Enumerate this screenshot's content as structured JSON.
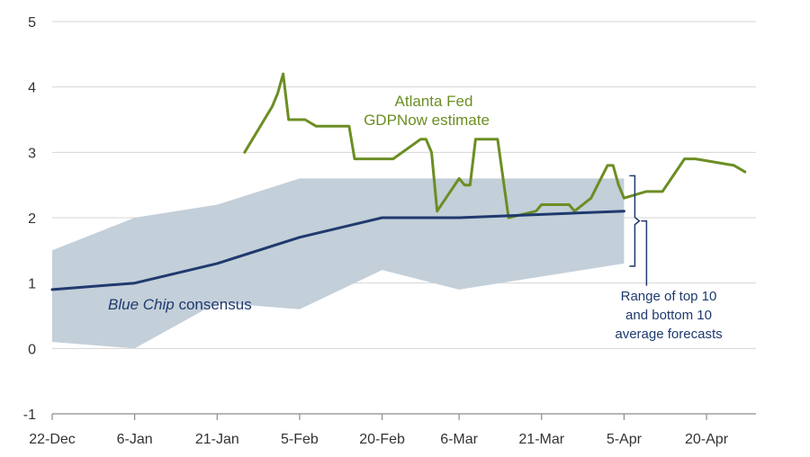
{
  "chart_data": {
    "type": "line",
    "x_axis": {
      "type": "date",
      "range": [
        "2018-12-22",
        "2019-04-29"
      ],
      "tick_labels": [
        "22-Dec",
        "6-Jan",
        "21-Jan",
        "5-Feb",
        "20-Feb",
        "6-Mar",
        "21-Mar",
        "5-Apr",
        "20-Apr"
      ],
      "tick_dates": [
        "2018-12-22",
        "2019-01-06",
        "2019-01-21",
        "2019-02-05",
        "2019-02-20",
        "2019-03-06",
        "2019-03-21",
        "2019-04-05",
        "2019-04-20"
      ]
    },
    "y_axis": {
      "range": [
        -1,
        5
      ],
      "tick_labels": [
        "-1",
        "0",
        "1",
        "2",
        "3",
        "4",
        "5"
      ],
      "tick_values": [
        -1,
        0,
        1,
        2,
        3,
        4,
        5
      ],
      "gridlines": true
    },
    "series": [
      {
        "name": "Atlanta Fed GDPNow estimate",
        "kind": "line",
        "color": "#6b8e23",
        "points": [
          [
            "2019-01-26",
            3.0
          ],
          [
            "2019-01-31",
            3.7
          ],
          [
            "2019-02-01",
            3.9
          ],
          [
            "2019-02-02",
            4.2
          ],
          [
            "2019-02-03",
            3.5
          ],
          [
            "2019-02-06",
            3.5
          ],
          [
            "2019-02-08",
            3.4
          ],
          [
            "2019-02-14",
            3.4
          ],
          [
            "2019-02-15",
            2.9
          ],
          [
            "2019-02-22",
            2.9
          ],
          [
            "2019-02-27",
            3.2
          ],
          [
            "2019-02-28",
            3.2
          ],
          [
            "2019-03-01",
            3.0
          ],
          [
            "2019-03-02",
            2.1
          ],
          [
            "2019-03-06",
            2.6
          ],
          [
            "2019-03-07",
            2.5
          ],
          [
            "2019-03-08",
            2.5
          ],
          [
            "2019-03-09",
            3.2
          ],
          [
            "2019-03-13",
            3.2
          ],
          [
            "2019-03-15",
            2.0
          ],
          [
            "2019-03-20",
            2.1
          ],
          [
            "2019-03-21",
            2.2
          ],
          [
            "2019-03-26",
            2.2
          ],
          [
            "2019-03-27",
            2.1
          ],
          [
            "2019-03-30",
            2.3
          ],
          [
            "2019-04-02",
            2.8
          ],
          [
            "2019-04-03",
            2.8
          ],
          [
            "2019-04-04",
            2.5
          ],
          [
            "2019-04-05",
            2.3
          ],
          [
            "2019-04-07",
            2.35
          ],
          [
            "2019-04-09",
            2.4
          ],
          [
            "2019-04-12",
            2.4
          ],
          [
            "2019-04-16",
            2.9
          ],
          [
            "2019-04-18",
            2.9
          ],
          [
            "2019-04-25",
            2.8
          ],
          [
            "2019-04-27",
            2.7
          ]
        ]
      },
      {
        "name": "Blue Chip consensus",
        "kind": "line",
        "color": "#1f3a6e",
        "points": [
          [
            "2018-12-22",
            0.9
          ],
          [
            "2019-01-06",
            1.0
          ],
          [
            "2019-01-21",
            1.3
          ],
          [
            "2019-02-05",
            1.7
          ],
          [
            "2019-02-20",
            2.0
          ],
          [
            "2019-03-06",
            2.0
          ],
          [
            "2019-03-21",
            2.05
          ],
          [
            "2019-04-05",
            2.1
          ]
        ]
      },
      {
        "name": "Range of top 10 and bottom 10 average forecasts",
        "kind": "band",
        "color": "#c3cfd9",
        "upper": [
          [
            "2018-12-22",
            1.5
          ],
          [
            "2019-01-06",
            2.0
          ],
          [
            "2019-01-21",
            2.2
          ],
          [
            "2019-02-05",
            2.6
          ],
          [
            "2019-02-20",
            2.6
          ],
          [
            "2019-03-06",
            2.6
          ],
          [
            "2019-03-21",
            2.6
          ],
          [
            "2019-04-05",
            2.6
          ]
        ],
        "lower": [
          [
            "2018-12-22",
            0.1
          ],
          [
            "2019-01-06",
            0.0
          ],
          [
            "2019-01-21",
            0.7
          ],
          [
            "2019-02-05",
            0.6
          ],
          [
            "2019-02-20",
            1.2
          ],
          [
            "2019-03-06",
            0.9
          ],
          [
            "2019-03-21",
            1.1
          ],
          [
            "2019-04-05",
            1.3
          ]
        ]
      }
    ],
    "annotations": {
      "gdpnow_line1": "Atlanta Fed",
      "gdpnow_line2": "GDPNow estimate",
      "bluechip_italic": "Blue Chip",
      "bluechip_rest": " consensus",
      "range_line1": "Range of top 10",
      "range_line2": "and bottom 10",
      "range_line3": "average forecasts"
    }
  }
}
